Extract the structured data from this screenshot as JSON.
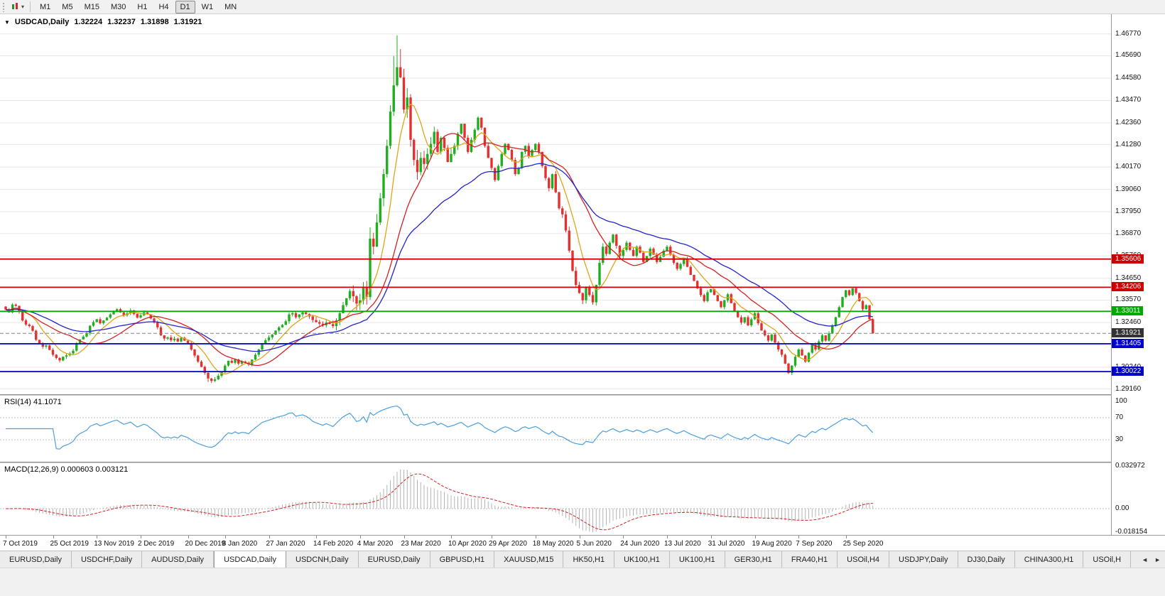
{
  "toolbar": {
    "dropdown_caret": "▾",
    "timeframes": [
      {
        "label": "M1",
        "active": false
      },
      {
        "label": "M5",
        "active": false
      },
      {
        "label": "M15",
        "active": false
      },
      {
        "label": "M30",
        "active": false
      },
      {
        "label": "H1",
        "active": false
      },
      {
        "label": "H4",
        "active": false
      },
      {
        "label": "D1",
        "active": true
      },
      {
        "label": "W1",
        "active": false
      },
      {
        "label": "MN",
        "active": false
      }
    ]
  },
  "chart": {
    "title": {
      "arrow": "▼",
      "symbol": "USDCAD,Daily",
      "open": "1.32224",
      "high": "1.32237",
      "low": "1.31898",
      "close": "1.31921"
    }
  },
  "chart_data": {
    "type": "candlestick",
    "symbol": "USDCAD",
    "timeframe": "Daily",
    "scale": {
      "price_max": 1.4775,
      "price_min": 1.289
    },
    "price_axis_ticks": [
      1.4677,
      1.4569,
      1.4458,
      1.4347,
      1.4236,
      1.4128,
      1.4017,
      1.3906,
      1.3795,
      1.3687,
      1.3576,
      1.3465,
      1.3357,
      1.3246,
      1.3135,
      1.3024,
      1.2916
    ],
    "levels": [
      {
        "value": 1.35606,
        "color": "#cc0000"
      },
      {
        "value": 1.34206,
        "color": "#cc0000"
      },
      {
        "value": 1.33011,
        "color": "#00a800"
      },
      {
        "value": 1.31405,
        "color": "#0000cc"
      },
      {
        "value": 1.30022,
        "color": "#0000cc"
      }
    ],
    "current_price": {
      "value": 1.31921,
      "label_bg": "#333333"
    },
    "candles": {
      "up_color": "#1fae1f",
      "down_color": "#e53030",
      "closes": [
        1.331,
        1.3296,
        1.3335,
        1.3328,
        1.33,
        1.3256,
        1.3236,
        1.3228,
        1.3205,
        1.316,
        1.3142,
        1.3126,
        1.3132,
        1.311,
        1.3086,
        1.307,
        1.3058,
        1.3076,
        1.3083,
        1.3092,
        1.3106,
        1.314,
        1.3162,
        1.3176,
        1.3192,
        1.323,
        1.3248,
        1.3262,
        1.3242,
        1.3256,
        1.327,
        1.3286,
        1.3302,
        1.3312,
        1.3296,
        1.3282,
        1.3292,
        1.3306,
        1.3288,
        1.327,
        1.3282,
        1.3296,
        1.3286,
        1.3266,
        1.3246,
        1.3222,
        1.3182,
        1.3166,
        1.3172,
        1.3158,
        1.3166,
        1.3152,
        1.317,
        1.3156,
        1.3142,
        1.3112,
        1.3082,
        1.3052,
        1.3026,
        1.2996,
        1.2968,
        1.2956,
        1.2964,
        1.2982,
        1.3002,
        1.3032,
        1.3056,
        1.3046,
        1.3062,
        1.3042,
        1.3052,
        1.3048,
        1.3038,
        1.3062,
        1.3086,
        1.3112,
        1.3142,
        1.3158,
        1.3172,
        1.3186,
        1.3206,
        1.3222,
        1.3234,
        1.3252,
        1.3286,
        1.3292,
        1.3272,
        1.3286,
        1.3296,
        1.3288,
        1.3276,
        1.3258,
        1.3248,
        1.324,
        1.3232,
        1.3246,
        1.3238,
        1.3228,
        1.3256,
        1.3292,
        1.3332,
        1.3366,
        1.3402,
        1.3376,
        1.334,
        1.3356,
        1.3422,
        1.3372,
        1.3662,
        1.3622,
        1.3742,
        1.3862,
        1.3982,
        1.4122,
        1.4292,
        1.4422,
        1.4512,
        1.4462,
        1.4302,
        1.4362,
        1.4152,
        1.4052,
        1.3992,
        1.4062,
        1.4032,
        1.4082,
        1.4132,
        1.4192,
        1.4092,
        1.4162,
        1.4112,
        1.4042,
        1.4082,
        1.4122,
        1.4182,
        1.4232,
        1.4162,
        1.4092,
        1.4152,
        1.4202,
        1.4262,
        1.4212,
        1.4122,
        1.4062,
        1.4012,
        1.3952,
        1.4022,
        1.4082,
        1.4132,
        1.4102,
        1.4052,
        1.3982,
        1.4012,
        1.4092,
        1.4122,
        1.4072,
        1.4102,
        1.4132,
        1.4092,
        1.4022,
        1.3962,
        1.3912,
        1.3982,
        1.3892,
        1.3812,
        1.3782,
        1.3702,
        1.3602,
        1.3502,
        1.3432,
        1.3392,
        1.3356,
        1.3422,
        1.3382,
        1.3346,
        1.3432,
        1.3542,
        1.3622,
        1.3586,
        1.3642,
        1.3682,
        1.3626,
        1.3576,
        1.3606,
        1.3642,
        1.3606,
        1.3576,
        1.3622,
        1.3592,
        1.3546,
        1.3576,
        1.3612,
        1.3582,
        1.3546,
        1.3572,
        1.3602,
        1.3622,
        1.3582,
        1.3542,
        1.3512,
        1.3536,
        1.3562,
        1.3522,
        1.3482,
        1.3452,
        1.3416,
        1.3382,
        1.3352,
        1.3396,
        1.3412,
        1.3382,
        1.3352,
        1.3322,
        1.3356,
        1.3386,
        1.3342,
        1.3302,
        1.3272,
        1.3246,
        1.3272,
        1.3232,
        1.3262,
        1.3292,
        1.3242,
        1.3206,
        1.3182,
        1.3156,
        1.3186,
        1.3146,
        1.3112,
        1.3086,
        1.3042,
        1.2996,
        1.3032,
        1.3076,
        1.3112,
        1.3082,
        1.3052,
        1.3096,
        1.3136,
        1.3112,
        1.3152,
        1.3182,
        1.3156,
        1.3192,
        1.3232,
        1.3272,
        1.3322,
        1.3372,
        1.3406,
        1.3382,
        1.3416,
        1.3392,
        1.3352,
        1.3312,
        1.3332,
        1.3262,
        1.3192
      ],
      "high_overrides": {
        "108": 1.3718,
        "115": 1.4568,
        "116": 1.467,
        "117": 1.4602
      },
      "low_overrides": {
        "60": 1.2951,
        "61": 1.2946,
        "232": 1.299
      }
    },
    "moving_averages": [
      {
        "name": "ma-fast-orange",
        "period": 8,
        "type": "sma",
        "color": "#e0a419"
      },
      {
        "name": "ma-mid-red",
        "period": 20,
        "type": "sma",
        "color": "#d62020"
      },
      {
        "name": "ma-slow-blue",
        "period": 40,
        "type": "ema",
        "color": "#2424cc"
      }
    ],
    "date_labels": [
      {
        "label": "7 Oct 2019",
        "bar": 0
      },
      {
        "label": "25 Oct 2019",
        "bar": 14
      },
      {
        "label": "13 Nov 2019",
        "bar": 27
      },
      {
        "label": "2 Dec 2019",
        "bar": 40
      },
      {
        "label": "20 Dec 2019",
        "bar": 54
      },
      {
        "label": "8 Jan 2020",
        "bar": 65
      },
      {
        "label": "27 Jan 2020",
        "bar": 78
      },
      {
        "label": "14 Feb 2020",
        "bar": 92
      },
      {
        "label": "4 Mar 2020",
        "bar": 105
      },
      {
        "label": "23 Mar 2020",
        "bar": 118
      },
      {
        "label": "10 Apr 2020",
        "bar": 132
      },
      {
        "label": "29 Apr 2020",
        "bar": 144
      },
      {
        "label": "18 May 2020",
        "bar": 157
      },
      {
        "label": "5 Jun 2020",
        "bar": 170
      },
      {
        "label": "24 Jun 2020",
        "bar": 183
      },
      {
        "label": "13 Jul 2020",
        "bar": 196
      },
      {
        "label": "31 Jul 2020",
        "bar": 209
      },
      {
        "label": "19 Aug 2020",
        "bar": 222
      },
      {
        "label": "7 Sep 2020",
        "bar": 235
      },
      {
        "label": "25 Sep 2020",
        "bar": 249
      }
    ],
    "rsi": {
      "title": "RSI(14) 41.1071",
      "period": 14,
      "current": "41.1071",
      "levels": [
        100,
        70,
        30
      ],
      "color": "#4a9fe0"
    },
    "macd": {
      "title": "MACD(12,26,9) 0.000603 0.003121",
      "fast": 12,
      "slow": 26,
      "signal": 9,
      "main_value": "0.000603",
      "signal_value": "0.003121",
      "axis_top": "0.032972",
      "axis_zero": "0.00",
      "axis_bottom": "-0.018154",
      "scale_max": 0.032972,
      "scale_min": -0.018154,
      "hist_color": "#b4b4b4",
      "signal_color": "#d62020"
    }
  },
  "tab_bar": {
    "tabs": [
      "EURUSD,Daily",
      "USDCHF,Daily",
      "AUDUSD,Daily",
      "USDCAD,Daily",
      "USDCNH,Daily",
      "EURUSD,Daily",
      "GBPUSD,H1",
      "XAUUSD,M15",
      "HK50,H1",
      "UK100,H1",
      "UK100,H1",
      "GER30,H1",
      "FRA40,H1",
      "USOil,H4",
      "USDJPY,Daily",
      "DJ30,Daily",
      "CHINA300,H1",
      "USOil,H"
    ],
    "active_index": 3,
    "scroll_left": "◄",
    "scroll_right": "►"
  }
}
